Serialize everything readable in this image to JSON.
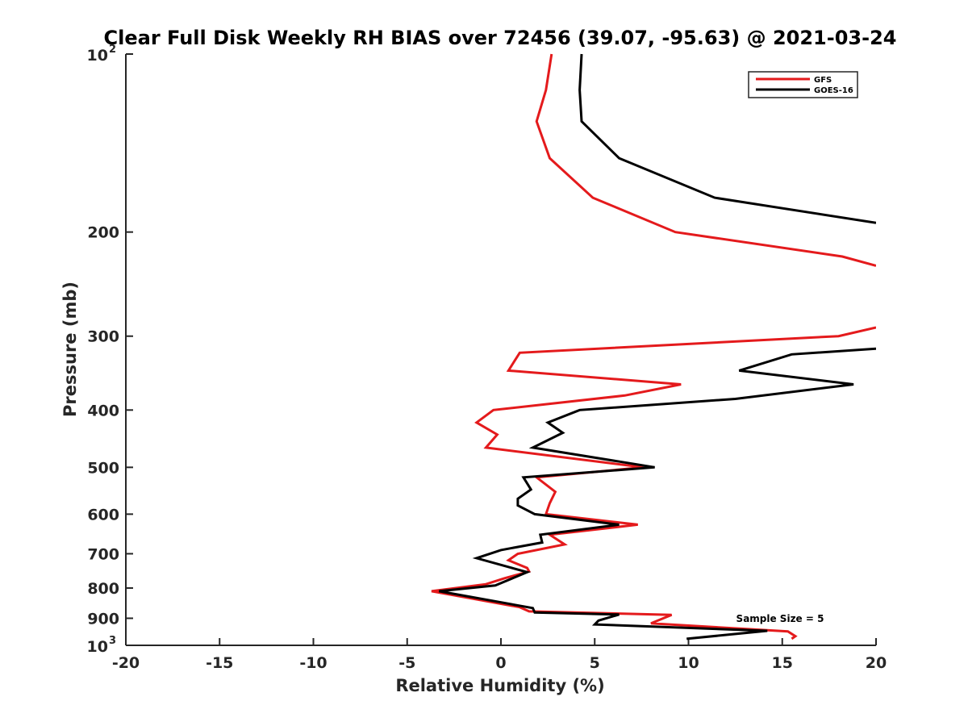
{
  "chart_data": {
    "type": "line",
    "title": "Clear Full Disk Weekly RH BIAS over 72456 (39.07, -95.63) @ 2021-03-24",
    "xlabel": "Relative Humidity (%)",
    "ylabel": "Pressure (mb)",
    "xlim": [
      -20,
      20
    ],
    "ylim": [
      100,
      1000
    ],
    "yscale": "log",
    "y_reversed": true,
    "grid": false,
    "legend_position": "top-right",
    "x_ticks": [
      "-20",
      "-15",
      "-10",
      "-5",
      "0",
      "5",
      "10",
      "15",
      "20"
    ],
    "y_ticks": [
      {
        "value": 100,
        "base": "10",
        "exp": "2"
      },
      {
        "value": 200,
        "label": "200"
      },
      {
        "value": 300,
        "label": "300"
      },
      {
        "value": 400,
        "label": "400"
      },
      {
        "value": 500,
        "label": "500"
      },
      {
        "value": 600,
        "label": "600"
      },
      {
        "value": 700,
        "label": "700"
      },
      {
        "value": 800,
        "label": "800"
      },
      {
        "value": 900,
        "label": "900"
      },
      {
        "value": 1000,
        "base": "10",
        "exp": "3"
      }
    ],
    "annotation": "Sample Size = 5",
    "series": [
      {
        "name": "GFS",
        "color": "#e41a1c",
        "segments": [
          [
            {
              "x": 2.7,
              "p": 100
            },
            {
              "x": 2.4,
              "p": 115
            },
            {
              "x": 1.9,
              "p": 130
            },
            {
              "x": 2.6,
              "p": 150
            },
            {
              "x": 4.9,
              "p": 175
            },
            {
              "x": 9.3,
              "p": 200
            },
            {
              "x": 18.2,
              "p": 220
            },
            {
              "x": 20.0,
              "p": 228
            }
          ],
          [
            {
              "x": 20.0,
              "p": 290
            },
            {
              "x": 18.0,
              "p": 300
            },
            {
              "x": 1.0,
              "p": 320
            },
            {
              "x": 0.4,
              "p": 343
            },
            {
              "x": 9.6,
              "p": 362
            },
            {
              "x": 6.6,
              "p": 378
            },
            {
              "x": -0.4,
              "p": 400
            },
            {
              "x": -1.3,
              "p": 420
            },
            {
              "x": -0.2,
              "p": 440
            },
            {
              "x": -0.8,
              "p": 463
            },
            {
              "x": 7.6,
              "p": 500
            },
            {
              "x": 1.9,
              "p": 520
            },
            {
              "x": 2.9,
              "p": 550
            },
            {
              "x": 2.6,
              "p": 575
            },
            {
              "x": 2.4,
              "p": 600
            },
            {
              "x": 7.3,
              "p": 625
            },
            {
              "x": 2.6,
              "p": 650
            },
            {
              "x": 3.4,
              "p": 675
            },
            {
              "x": 0.9,
              "p": 700
            },
            {
              "x": 0.4,
              "p": 718
            },
            {
              "x": 1.4,
              "p": 740
            },
            {
              "x": 1.5,
              "p": 750
            },
            {
              "x": 0.2,
              "p": 770
            },
            {
              "x": -0.8,
              "p": 788
            },
            {
              "x": -3.7,
              "p": 810
            },
            {
              "x": 1.0,
              "p": 862
            },
            {
              "x": 1.5,
              "p": 876
            },
            {
              "x": 9.1,
              "p": 888
            },
            {
              "x": 8.0,
              "p": 918
            },
            {
              "x": 15.3,
              "p": 947
            },
            {
              "x": 15.7,
              "p": 965
            },
            {
              "x": 15.5,
              "p": 975
            }
          ]
        ]
      },
      {
        "name": "GOES-16",
        "color": "#000000",
        "segments": [
          [
            {
              "x": 4.3,
              "p": 100
            },
            {
              "x": 4.2,
              "p": 115
            },
            {
              "x": 4.3,
              "p": 130
            },
            {
              "x": 6.3,
              "p": 150
            },
            {
              "x": 11.4,
              "p": 175
            },
            {
              "x": 20.0,
              "p": 193
            }
          ],
          [
            {
              "x": 20.0,
              "p": 315
            },
            {
              "x": 15.5,
              "p": 322
            },
            {
              "x": 12.7,
              "p": 343
            },
            {
              "x": 18.8,
              "p": 362
            },
            {
              "x": 12.5,
              "p": 383
            },
            {
              "x": 4.2,
              "p": 400
            },
            {
              "x": 2.5,
              "p": 420
            },
            {
              "x": 3.3,
              "p": 437
            },
            {
              "x": 1.7,
              "p": 463
            },
            {
              "x": 8.2,
              "p": 500
            },
            {
              "x": 1.2,
              "p": 520
            },
            {
              "x": 1.6,
              "p": 545
            },
            {
              "x": 0.9,
              "p": 565
            },
            {
              "x": 0.9,
              "p": 580
            },
            {
              "x": 1.8,
              "p": 600
            },
            {
              "x": 6.3,
              "p": 625
            },
            {
              "x": 2.1,
              "p": 650
            },
            {
              "x": 2.2,
              "p": 670
            },
            {
              "x": 0.0,
              "p": 690
            },
            {
              "x": -1.3,
              "p": 712
            },
            {
              "x": 1.4,
              "p": 752
            },
            {
              "x": -0.3,
              "p": 792
            },
            {
              "x": -3.3,
              "p": 810
            },
            {
              "x": 1.7,
              "p": 865
            },
            {
              "x": 1.8,
              "p": 880
            },
            {
              "x": 6.3,
              "p": 887
            },
            {
              "x": 5.2,
              "p": 908
            },
            {
              "x": 5.0,
              "p": 922
            },
            {
              "x": 14.2,
              "p": 945
            },
            {
              "x": 9.9,
              "p": 975
            }
          ]
        ]
      }
    ]
  }
}
